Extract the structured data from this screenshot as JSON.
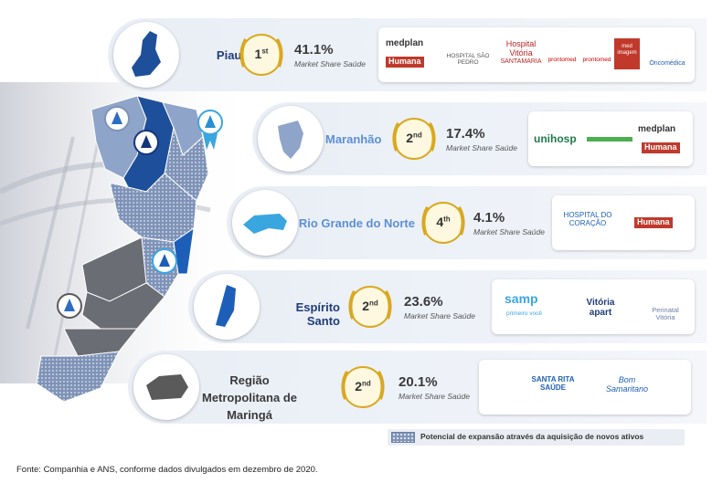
{
  "rows": [
    {
      "region": "Piauí",
      "rank_num": "1",
      "rank_suffix": "st",
      "share": "41.1%",
      "share_label": "Market Share Saúde",
      "logos": [
        "medplan",
        "Humana",
        "HOSPITAL SÃO PEDRO",
        "Hospital Vitória",
        "SANTAMARIA",
        "prontomed",
        "prontomed",
        "med imagem",
        "Oncomédica"
      ]
    },
    {
      "region": "Maranhão",
      "rank_num": "2",
      "rank_suffix": "nd",
      "share": "17.4%",
      "share_label": "Market Share Saúde",
      "logos": [
        "unihosp",
        "medplan",
        "Humana"
      ]
    },
    {
      "region": "Rio Grande do Norte",
      "rank_num": "4",
      "rank_suffix": "th",
      "share": "4.1%",
      "share_label": "Market Share Saúde",
      "logos": [
        "HOSPITAL DO CORAÇÃO",
        "Humana"
      ]
    },
    {
      "region": "Espírito Santo",
      "rank_num": "2",
      "rank_suffix": "nd",
      "share": "23.6%",
      "share_label": "Market Share Saúde",
      "logos": [
        "samp",
        "primeiro você",
        "Vitória apart",
        "Perinatal Vitória"
      ]
    },
    {
      "region": "Região Metropolitana de Maringá",
      "rank_num": "2",
      "rank_suffix": "nd",
      "share": "20.1%",
      "share_label": "Market Share Saúde",
      "logos": [
        "SANTA RITA SAÚDE",
        "Bom Samaritano"
      ]
    }
  ],
  "legend": {
    "text": "Potencial de expansão através da aquisição de novos ativos"
  },
  "source": "Fonte: Companhia e ANS, conforme dados divulgados em dezembro de 2020.",
  "colors": {
    "row_bg": "#eaeff6",
    "state_blue": "#1d5fb8",
    "state_light": "#8fa4c9",
    "state_dark": "#15377a",
    "pin_blue": "#3aa6e0",
    "pin_grey": "#5a5a5a",
    "medal_gold": "#d9a820",
    "region_text_dark": "#1f3d7a",
    "region_text_light": "#5b8fd6"
  }
}
